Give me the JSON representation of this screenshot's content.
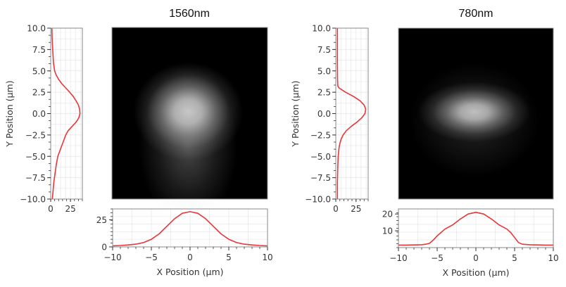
{
  "chart_data": [
    {
      "panel": "left",
      "title": "1560nm",
      "colors": {
        "profile": "#e8363a",
        "grid": "#e6e6e6",
        "frame": "#888888",
        "image_bg": "#000000"
      },
      "beam_image": {
        "type": "heatmap",
        "center_x_um": -0.2,
        "center_y_um": 0.2,
        "sigma_x_um": 3.2,
        "sigma_y_um": 2.6,
        "peak_gray": 0.78,
        "tail_down": true
      },
      "y_profile": {
        "type": "line",
        "ylabel": "Y Position (μm)",
        "ylim": [
          -10,
          10
        ],
        "yticks": [
          "10.0",
          "7.5",
          "5.0",
          "2.5",
          "0.0",
          "−2.5",
          "−5.0",
          "−7.5",
          "−10.0"
        ],
        "ytick_values": [
          10,
          7.5,
          5,
          2.5,
          0,
          -2.5,
          -5,
          -7.5,
          -10
        ],
        "xlim": [
          0,
          40
        ],
        "xticks": [
          "0",
          "25"
        ],
        "xtick_values": [
          0,
          25
        ],
        "y": [
          10,
          9,
          8,
          7,
          6,
          5,
          4.5,
          4,
          3.5,
          3,
          2.5,
          2,
          1.5,
          1,
          0.5,
          0,
          -0.5,
          -1,
          -1.5,
          -2,
          -2.5,
          -3,
          -3.5,
          -4,
          -4.5,
          -5,
          -6,
          -7,
          -8,
          -9,
          -10
        ],
        "values": [
          1.5,
          1.8,
          2.2,
          2.8,
          3.5,
          5,
          7,
          10,
          14,
          19,
          24,
          28.5,
          32,
          35,
          36.5,
          37,
          35.5,
          32,
          27,
          22,
          19,
          17,
          15,
          13,
          11,
          9,
          7,
          5.5,
          4,
          3,
          2
        ]
      },
      "x_profile": {
        "type": "line",
        "xlabel": "X Position (μm)",
        "xlim": [
          -10,
          10
        ],
        "xticks": [
          "−10",
          "−5",
          "0",
          "5",
          "10"
        ],
        "xtick_values": [
          -10,
          -5,
          0,
          5,
          10
        ],
        "ylim": [
          0,
          35
        ],
        "yticks": [
          "0",
          "25"
        ],
        "ytick_values": [
          0,
          25
        ],
        "x": [
          -10,
          -9,
          -8,
          -7,
          -6,
          -5,
          -4,
          -3,
          -2,
          -1,
          0,
          1,
          2,
          3,
          4,
          5,
          6,
          7,
          8,
          9,
          10
        ],
        "values": [
          1,
          1.3,
          1.8,
          2.5,
          4,
          7,
          12,
          19,
          26,
          31,
          32.5,
          31,
          26,
          19,
          12,
          7,
          4,
          2.5,
          1.8,
          1.3,
          1
        ]
      }
    },
    {
      "panel": "right",
      "title": "780nm",
      "colors": {
        "profile": "#e8363a",
        "grid": "#e6e6e6",
        "frame": "#888888",
        "image_bg": "#000000"
      },
      "beam_image": {
        "type": "heatmap",
        "center_x_um": -0.2,
        "center_y_um": 0.2,
        "sigma_x_um": 3.3,
        "sigma_y_um": 1.6,
        "peak_gray": 0.75,
        "tail_down": false
      },
      "y_profile": {
        "type": "line",
        "ylabel": "Y Position (μm)",
        "ylim": [
          -10,
          10
        ],
        "yticks": [
          "10.0",
          "7.5",
          "5.0",
          "2.5",
          "0.0",
          "−2.5",
          "−5.0",
          "−7.5",
          "−10.0"
        ],
        "ytick_values": [
          10,
          7.5,
          5,
          2.5,
          0,
          -2.5,
          -5,
          -7.5,
          -10
        ],
        "xlim": [
          0,
          40
        ],
        "xticks": [
          "0",
          "25"
        ],
        "xtick_values": [
          0,
          25
        ],
        "y": [
          10,
          8,
          6,
          4,
          3.2,
          3,
          2.5,
          2,
          1.5,
          1,
          0.5,
          0,
          -0.5,
          -1,
          -1.5,
          -2,
          -2.5,
          -3,
          -3.5,
          -4,
          -5,
          -6,
          -8,
          -10
        ],
        "values": [
          2,
          2,
          2,
          2.2,
          2.5,
          4,
          12,
          22,
          30,
          35,
          37,
          36,
          32,
          26,
          19,
          13,
          9,
          6.5,
          5,
          4,
          3,
          2.5,
          2,
          2
        ]
      },
      "x_profile": {
        "type": "line",
        "xlabel": "X Position (μm)",
        "xlim": [
          -10,
          10
        ],
        "xticks": [
          "−10",
          "−5",
          "0",
          "5",
          "10"
        ],
        "xtick_values": [
          -10,
          -5,
          0,
          5,
          10
        ],
        "ylim": [
          0,
          23
        ],
        "yticks": [
          "10",
          "20"
        ],
        "ytick_values": [
          10,
          20
        ],
        "x": [
          -10,
          -9,
          -8,
          -7,
          -6.5,
          -6,
          -5.5,
          -5,
          -4.5,
          -4,
          -3,
          -2,
          -1,
          0,
          1,
          2,
          3,
          4,
          4.5,
          5,
          5.5,
          6,
          7,
          8,
          9,
          10
        ],
        "values": [
          1.5,
          1.5,
          1.6,
          1.7,
          2,
          2.5,
          4.5,
          7,
          9,
          11,
          13.5,
          17,
          20,
          21,
          20,
          17,
          13.5,
          11,
          9,
          6,
          3,
          2,
          1.7,
          1.6,
          1.5,
          1.5
        ]
      }
    }
  ]
}
